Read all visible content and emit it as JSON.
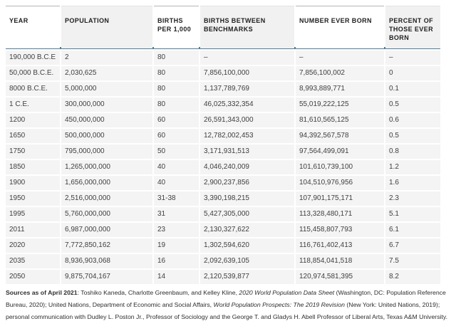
{
  "chart_data": {
    "type": "table",
    "columns": [
      {
        "label": "YEAR",
        "shaded": false
      },
      {
        "label": "POPULATION",
        "shaded": true
      },
      {
        "label": "BIRTHS PER 1,000",
        "shaded": false
      },
      {
        "label": "BIRTHS BETWEEN BENCHMARKS",
        "shaded": true
      },
      {
        "label": "NUMBER EVER BORN",
        "shaded": false
      },
      {
        "label": "PERCENT OF THOSE EVER BORN",
        "shaded": true
      }
    ],
    "rows": [
      [
        "190,000 B.C.E",
        "2",
        "80",
        "–",
        "–",
        "–"
      ],
      [
        "50,000 B.C.E.",
        "2,030,625",
        "80",
        "7,856,100,000",
        "7,856,100,002",
        "0"
      ],
      [
        "8000 B.C.E.",
        "5,000,000",
        "80",
        "1,137,789,769",
        "8,993,889,771",
        "0.1"
      ],
      [
        "1 C.E.",
        "300,000,000",
        "80",
        "46,025,332,354",
        "55,019,222,125",
        "0.5"
      ],
      [
        "1200",
        "450,000,000",
        "60",
        "26,591,343,000",
        "81,610,565,125",
        "0.6"
      ],
      [
        "1650",
        "500,000,000",
        "60",
        "12,782,002,453",
        "94,392,567,578",
        "0.5"
      ],
      [
        "1750",
        "795,000,000",
        "50",
        "3,171,931,513",
        "97,564,499,091",
        "0.8"
      ],
      [
        "1850",
        "1,265,000,000",
        "40",
        "4,046,240,009",
        "101,610,739,100",
        "1.2"
      ],
      [
        "1900",
        "1,656,000,000",
        "40",
        "2,900,237,856",
        "104,510,976,956",
        "1.6"
      ],
      [
        "1950",
        "2,516,000,000",
        "31-38",
        "3,390,198,215",
        "107,901,175,171",
        "2.3"
      ],
      [
        "1995",
        "5,760,000,000",
        "31",
        "5,427,305,000",
        "113,328,480,171",
        "5.1"
      ],
      [
        "2011",
        "6,987,000,000",
        "23",
        "2,130,327,622",
        "115,458,807,793",
        "6.1"
      ],
      [
        "2020",
        "7,772,850,162",
        "19",
        "1,302,594,620",
        "116,761,402,413",
        "6.7"
      ],
      [
        "2035",
        "8,936,903,068",
        "16",
        "2,092,639,105",
        "118,854,041,518",
        "7.5"
      ],
      [
        "2050",
        "9,875,704,167",
        "14",
        "2,120,539,877",
        "120,974,581,395",
        "8.2"
      ]
    ]
  },
  "footer": {
    "segments": [
      {
        "text": "Sources as of April 2021",
        "style": "bold"
      },
      {
        "text": ": Toshiko Kaneda, Charlotte Greenbaum, and Kelley Kline, ",
        "style": "normal"
      },
      {
        "text": "2020 World Population Data Sheet",
        "style": "italic"
      },
      {
        "text": " (Washington, DC: Population Reference Bureau, 2020); United Nations, Department of Economic and Social Affairs, ",
        "style": "normal"
      },
      {
        "text": "World Population Prospects: The 2019 Revision",
        "style": "italic"
      },
      {
        "text": " (New York: United Nations, 2019); personal communication with Dudley L. Poston Jr., Professor of Sociology and the George T. and Gladys H. Abell Professor of Liberal Arts, Texas A&M University.",
        "style": "normal"
      }
    ]
  },
  "colors": {
    "divider_blue": "#4e7e9d",
    "header_shade": "#f1f1f1",
    "row_bg": "#f4f4f4"
  }
}
